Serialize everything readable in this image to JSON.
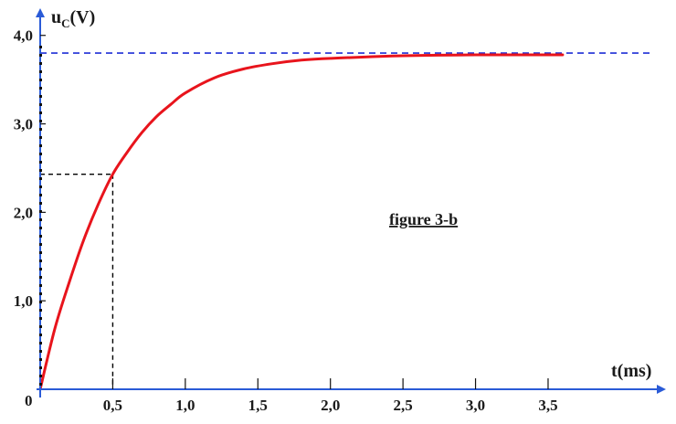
{
  "chart_data": {
    "type": "line",
    "xlabel": "t(ms)",
    "ylabel": {
      "main": "u",
      "sub": "C",
      "unit": "(V)"
    },
    "annotation": "figure 3-b",
    "origin_label": "0",
    "x_ticks": [
      {
        "value": 0.5,
        "label": "0,5"
      },
      {
        "value": 1.0,
        "label": "1,0"
      },
      {
        "value": 1.5,
        "label": "1,5"
      },
      {
        "value": 2.0,
        "label": "2,0"
      },
      {
        "value": 2.5,
        "label": "2,5"
      },
      {
        "value": 3.0,
        "label": "3,0"
      },
      {
        "value": 3.5,
        "label": "3,5"
      }
    ],
    "y_ticks": [
      {
        "value": 1.0,
        "label": "1,0"
      },
      {
        "value": 2.0,
        "label": "2,0"
      },
      {
        "value": 3.0,
        "label": "3,0"
      },
      {
        "value": 4.0,
        "label": "4,0"
      }
    ],
    "xlim": [
      0,
      4.35
    ],
    "ylim": [
      0,
      4.4
    ],
    "series": [
      {
        "color": "#e8141c",
        "points": [
          [
            0,
            0
          ],
          [
            0.1,
            0.68
          ],
          [
            0.2,
            1.21
          ],
          [
            0.3,
            1.69
          ],
          [
            0.4,
            2.09
          ],
          [
            0.5,
            2.43
          ],
          [
            0.6,
            2.68
          ],
          [
            0.7,
            2.9
          ],
          [
            0.8,
            3.08
          ],
          [
            0.9,
            3.22
          ],
          [
            1.0,
            3.35
          ],
          [
            1.2,
            3.52
          ],
          [
            1.4,
            3.62
          ],
          [
            1.6,
            3.68
          ],
          [
            1.8,
            3.72
          ],
          [
            2.0,
            3.74
          ],
          [
            2.5,
            3.77
          ],
          [
            3.0,
            3.78
          ],
          [
            3.6,
            3.78
          ]
        ]
      }
    ],
    "asymptote": {
      "value": 3.8,
      "color": "#1f2fd6"
    },
    "marker_lines": {
      "x": 0.5,
      "y": 2.43,
      "color": "#000000"
    },
    "grid": false
  }
}
